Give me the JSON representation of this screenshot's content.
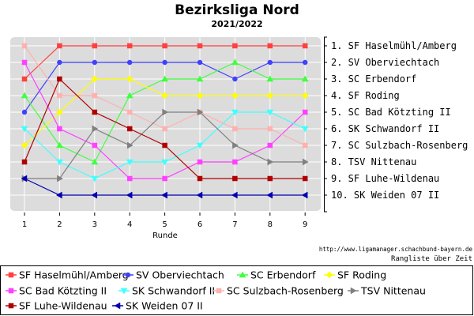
{
  "chart_data": {
    "type": "line",
    "title": "Bezirksliga Nord",
    "subtitle": "2021/2022",
    "xlabel": "Runde",
    "ylabel": "",
    "x": [
      1,
      2,
      3,
      4,
      5,
      6,
      7,
      8,
      9
    ],
    "ylim": [
      1,
      10
    ],
    "y_inverted": true,
    "grid": true,
    "legend_position": "bottom",
    "standings": [
      "1. SF Haselmühl/Amberg",
      "2. SV Oberviechtach",
      "3. SC Erbendorf",
      "4. SF Roding",
      "5. SC Bad Kötzting II",
      "6. SK Schwandorf II",
      "7. SC Sulzbach-Rosenberg",
      "8. TSV Nittenau",
      "9. SF Luhe-Wildenau",
      "10. SK Weiden 07 II"
    ],
    "series": [
      {
        "name": "SF Haselmühl/Amberg",
        "color": "#ff4040",
        "marker": "square",
        "values": [
          3,
          1,
          1,
          1,
          1,
          1,
          1,
          1,
          1
        ]
      },
      {
        "name": "SV Oberviechtach",
        "color": "#4040ff",
        "marker": "circle",
        "values": [
          5,
          2,
          2,
          2,
          2,
          2,
          3,
          2,
          2
        ]
      },
      {
        "name": "SC Erbendorf",
        "color": "#40ff40",
        "marker": "triangle-up",
        "values": [
          4,
          7,
          8,
          4,
          3,
          3,
          2,
          3,
          3
        ]
      },
      {
        "name": "SF Roding",
        "color": "#ffff00",
        "marker": "diamond",
        "values": [
          7,
          5,
          3,
          3,
          4,
          4,
          4,
          4,
          4
        ]
      },
      {
        "name": "SC Bad Kötzting II",
        "color": "#ff40ff",
        "marker": "square",
        "values": [
          2,
          6,
          7,
          9,
          9,
          8,
          8,
          7,
          5
        ]
      },
      {
        "name": "SK Schwandorf II",
        "color": "#40ffff",
        "marker": "triangle-down",
        "values": [
          6,
          8,
          9,
          8,
          8,
          7,
          5,
          5,
          6
        ]
      },
      {
        "name": "SC Sulzbach-Rosenberg",
        "color": "#ffb0b0",
        "marker": "square",
        "values": [
          1,
          4,
          4,
          5,
          6,
          5,
          6,
          6,
          7
        ]
      },
      {
        "name": "TSV Nittenau",
        "color": "#808080",
        "marker": "triangle-right",
        "values": [
          9,
          9,
          6,
          7,
          5,
          5,
          7,
          8,
          8
        ]
      },
      {
        "name": "SF Luhe-Wildenau",
        "color": "#b00000",
        "marker": "square",
        "values": [
          8,
          3,
          5,
          6,
          7,
          9,
          9,
          9,
          9
        ]
      },
      {
        "name": "SK Weiden 07 II",
        "color": "#0000b0",
        "marker": "triangle-left",
        "values": [
          9,
          10,
          10,
          10,
          10,
          10,
          10,
          10,
          10
        ]
      }
    ],
    "source_url": "http://www.ligamanager.schachbund-bayern.de",
    "caption": "Rangliste über Zeit"
  }
}
